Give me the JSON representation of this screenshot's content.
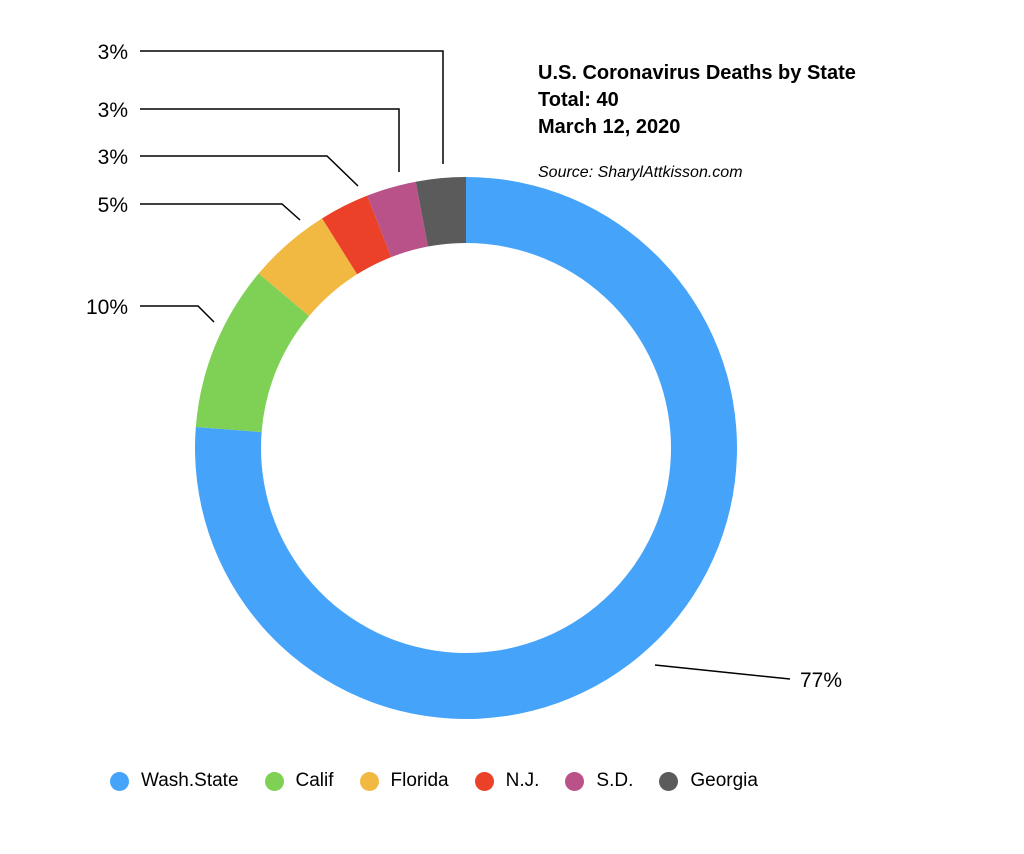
{
  "chart_data": {
    "type": "pie",
    "variant": "donut",
    "title": "U.S. Coronavirus Deaths by State",
    "subtitle_lines": [
      "Total: 40",
      "March 12, 2020"
    ],
    "source": "Source: SharylAttkisson.com",
    "legend_position": "bottom",
    "slices": [
      {
        "label": "Wash.State",
        "value": 77,
        "value_label": "77%",
        "color": "#45a4f9"
      },
      {
        "label": "Calif",
        "value": 10,
        "value_label": "10%",
        "color": "#7fd156"
      },
      {
        "label": "Florida",
        "value": 5,
        "value_label": "5%",
        "color": "#f1b942"
      },
      {
        "label": "N.J.",
        "value": 3,
        "value_label": "3%",
        "color": "#ec4129"
      },
      {
        "label": "S.D.",
        "value": 3,
        "value_label": "3%",
        "color": "#b85289"
      },
      {
        "label": "Georgia",
        "value": 3,
        "value_label": "3%",
        "color": "#5b5b5b"
      }
    ]
  }
}
